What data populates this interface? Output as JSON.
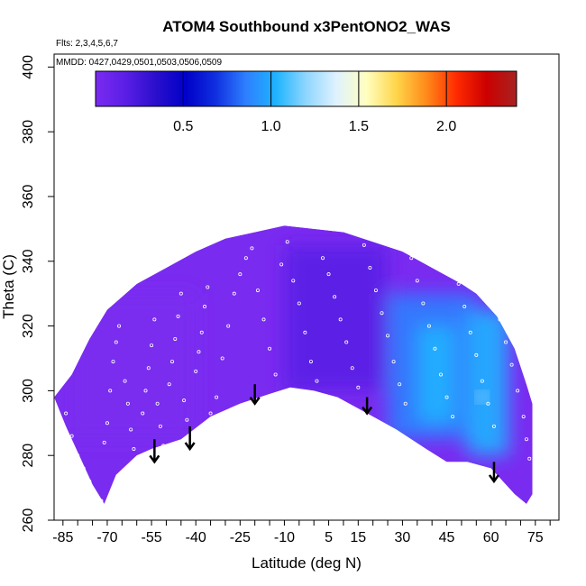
{
  "chart_data": {
    "type": "heatmap",
    "title": "ATOM4 Southbound x3PentONO2_WAS",
    "subtitle_flights": "Flts: 2,3,4,5,6,7",
    "subtitle_dates": "MMDD: 0427,0429,0501,0503,0506,0509",
    "xlabel": "Latitude (deg N)",
    "ylabel": "Theta (C)",
    "xlim": [
      -88,
      83
    ],
    "ylim": [
      260,
      404
    ],
    "x_ticks": [
      -85,
      -70,
      -55,
      -40,
      -25,
      -10,
      5,
      15,
      30,
      45,
      60,
      75
    ],
    "x_tick_labels": [
      "-85",
      "-70",
      "-55",
      "-40",
      "-25",
      "-10",
      "5",
      "15",
      "30",
      "45",
      "60",
      "75"
    ],
    "y_ticks": [
      260,
      280,
      300,
      320,
      340,
      360,
      380,
      400
    ],
    "y_tick_labels": [
      "260",
      "280",
      "300",
      "320",
      "340",
      "360",
      "380",
      "400"
    ],
    "colorbar": {
      "range": [
        0.0,
        2.4
      ],
      "ticks": [
        0.5,
        1.0,
        1.5,
        2.0
      ],
      "tick_labels": [
        "0.5",
        "1.0",
        "1.5",
        "2.0"
      ],
      "colors": [
        "#7a2bf0",
        "#5a1ee6",
        "#2a0fcc",
        "#0000c8",
        "#1030e0",
        "#2e7fff",
        "#1fb3ff",
        "#8fd6ff",
        "#dff2ff",
        "#ffffc0",
        "#ffd54a",
        "#ff8a1a",
        "#ff2a00",
        "#cc0000",
        "#a82222"
      ]
    },
    "domain_upper": [
      [
        -88,
        298
      ],
      [
        -82,
        305
      ],
      [
        -76,
        316
      ],
      [
        -70,
        325
      ],
      [
        -60,
        333
      ],
      [
        -50,
        338
      ],
      [
        -40,
        343
      ],
      [
        -30,
        347
      ],
      [
        -20,
        349
      ],
      [
        -10,
        351
      ],
      [
        0,
        350
      ],
      [
        10,
        349
      ],
      [
        20,
        346
      ],
      [
        30,
        343
      ],
      [
        40,
        338
      ],
      [
        50,
        333
      ],
      [
        55,
        330
      ],
      [
        62,
        323
      ],
      [
        68,
        313
      ],
      [
        72,
        302
      ],
      [
        74,
        296
      ]
    ],
    "domain_lower": [
      [
        -88,
        298
      ],
      [
        -84,
        289
      ],
      [
        -80,
        281
      ],
      [
        -75,
        271
      ],
      [
        -71,
        265
      ],
      [
        -67,
        274
      ],
      [
        -60,
        280
      ],
      [
        -55,
        282
      ],
      [
        -45,
        285
      ],
      [
        -35,
        292
      ],
      [
        -25,
        296
      ],
      [
        -15,
        299
      ],
      [
        -8,
        301
      ],
      [
        0,
        300
      ],
      [
        8,
        298
      ],
      [
        18,
        293
      ],
      [
        28,
        288
      ],
      [
        38,
        282
      ],
      [
        45,
        278
      ],
      [
        52,
        278
      ],
      [
        60,
        276
      ],
      [
        68,
        268
      ],
      [
        72,
        265
      ],
      [
        74,
        268
      ]
    ],
    "field_features": [
      {
        "x": [
          -10,
          25
        ],
        "y": [
          300,
          345
        ],
        "value": 0.25
      },
      {
        "x": [
          25,
          55
        ],
        "y": [
          285,
          330
        ],
        "value": 0.85
      },
      {
        "x": [
          35,
          48
        ],
        "y": [
          290,
          320
        ],
        "value": 0.95
      },
      {
        "x": [
          52,
          66
        ],
        "y": [
          280,
          325
        ],
        "value": 1.05
      },
      {
        "x": [
          -85,
          -40
        ],
        "y": [
          285,
          330
        ],
        "value": 0.05
      }
    ],
    "highlight_point": {
      "x": 57,
      "y": 298,
      "value": 1.4
    },
    "arrows": [
      {
        "x": -54,
        "y_top": 285,
        "y_bottom": 278
      },
      {
        "x": -42,
        "y_top": 289,
        "y_bottom": 282
      },
      {
        "x": -20,
        "y_top": 302,
        "y_bottom": 296
      },
      {
        "x": 18,
        "y_top": 298,
        "y_bottom": 293
      },
      {
        "x": 61,
        "y_top": 278,
        "y_bottom": 272
      }
    ],
    "sample_points": [
      [
        -84,
        293
      ],
      [
        -82,
        286
      ],
      [
        -80,
        280
      ],
      [
        -78,
        276
      ],
      [
        -76,
        272
      ],
      [
        -74,
        268
      ],
      [
        -72,
        266
      ],
      [
        -71,
        284
      ],
      [
        -70,
        290
      ],
      [
        -69,
        300
      ],
      [
        -68,
        309
      ],
      [
        -67,
        315
      ],
      [
        -66,
        320
      ],
      [
        -64,
        303
      ],
      [
        -63,
        296
      ],
      [
        -62,
        288
      ],
      [
        -61,
        282
      ],
      [
        -60,
        279
      ],
      [
        -58,
        293
      ],
      [
        -57,
        300
      ],
      [
        -56,
        307
      ],
      [
        -55,
        314
      ],
      [
        -54,
        322
      ],
      [
        -53,
        296
      ],
      [
        -52,
        289
      ],
      [
        -51,
        283
      ],
      [
        -50,
        281
      ],
      [
        -49,
        302
      ],
      [
        -48,
        309
      ],
      [
        -47,
        316
      ],
      [
        -46,
        323
      ],
      [
        -45,
        330
      ],
      [
        -44,
        297
      ],
      [
        -43,
        291
      ],
      [
        -42,
        286
      ],
      [
        -41,
        284
      ],
      [
        -40,
        306
      ],
      [
        -39,
        312
      ],
      [
        -38,
        318
      ],
      [
        -37,
        326
      ],
      [
        -36,
        332
      ],
      [
        -35,
        293
      ],
      [
        -33,
        298
      ],
      [
        -31,
        310
      ],
      [
        -29,
        320
      ],
      [
        -27,
        330
      ],
      [
        -25,
        336
      ],
      [
        -23,
        341
      ],
      [
        -21,
        344
      ],
      [
        -19,
        331
      ],
      [
        -17,
        322
      ],
      [
        -15,
        313
      ],
      [
        -13,
        305
      ],
      [
        -11,
        339
      ],
      [
        -9,
        346
      ],
      [
        -7,
        334
      ],
      [
        -5,
        327
      ],
      [
        -3,
        318
      ],
      [
        -1,
        309
      ],
      [
        1,
        303
      ],
      [
        3,
        341
      ],
      [
        5,
        336
      ],
      [
        7,
        329
      ],
      [
        9,
        322
      ],
      [
        11,
        315
      ],
      [
        13,
        307
      ],
      [
        15,
        301
      ],
      [
        17,
        345
      ],
      [
        19,
        338
      ],
      [
        21,
        331
      ],
      [
        23,
        324
      ],
      [
        25,
        317
      ],
      [
        27,
        309
      ],
      [
        29,
        302
      ],
      [
        31,
        296
      ],
      [
        33,
        341
      ],
      [
        35,
        334
      ],
      [
        37,
        327
      ],
      [
        39,
        320
      ],
      [
        41,
        313
      ],
      [
        43,
        305
      ],
      [
        45,
        298
      ],
      [
        47,
        292
      ],
      [
        49,
        333
      ],
      [
        51,
        326
      ],
      [
        53,
        318
      ],
      [
        55,
        311
      ],
      [
        57,
        303
      ],
      [
        59,
        296
      ],
      [
        61,
        289
      ],
      [
        63,
        322
      ],
      [
        65,
        315
      ],
      [
        67,
        308
      ],
      [
        69,
        300
      ],
      [
        71,
        292
      ],
      [
        72,
        285
      ],
      [
        73,
        279
      ],
      [
        66,
        328
      ],
      [
        60,
        330
      ],
      [
        55,
        331
      ]
    ]
  }
}
